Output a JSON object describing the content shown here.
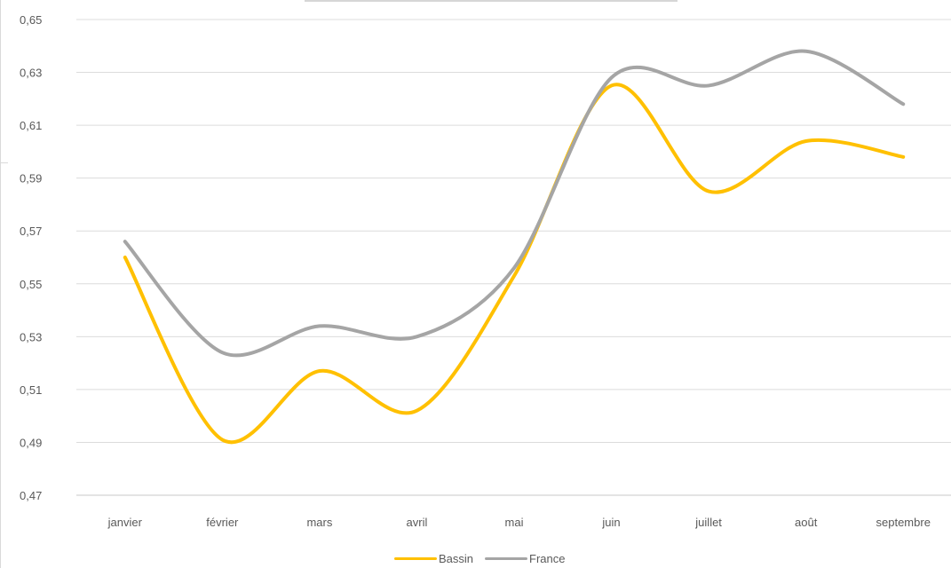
{
  "chart_data": {
    "type": "line",
    "title": "",
    "xlabel": "",
    "ylabel": "",
    "categories": [
      "janvier",
      "février",
      "mars",
      "avril",
      "mai",
      "juin",
      "juillet",
      "août",
      "septembre"
    ],
    "y_ticks": [
      "0,47",
      "0,49",
      "0,51",
      "0,53",
      "0,55",
      "0,57",
      "0,59",
      "0,61",
      "0,63",
      "0,65"
    ],
    "ylim": [
      0.47,
      0.65
    ],
    "grid": true,
    "legend_position": "bottom",
    "series": [
      {
        "name": "Bassin",
        "color": "#FFC000",
        "values": [
          0.56,
          0.491,
          0.517,
          0.502,
          0.553,
          0.625,
          0.585,
          0.604,
          0.598
        ]
      },
      {
        "name": "France",
        "color": "#A5A5A5",
        "values": [
          0.566,
          0.524,
          0.534,
          0.53,
          0.556,
          0.628,
          0.625,
          0.638,
          0.618
        ]
      }
    ]
  }
}
